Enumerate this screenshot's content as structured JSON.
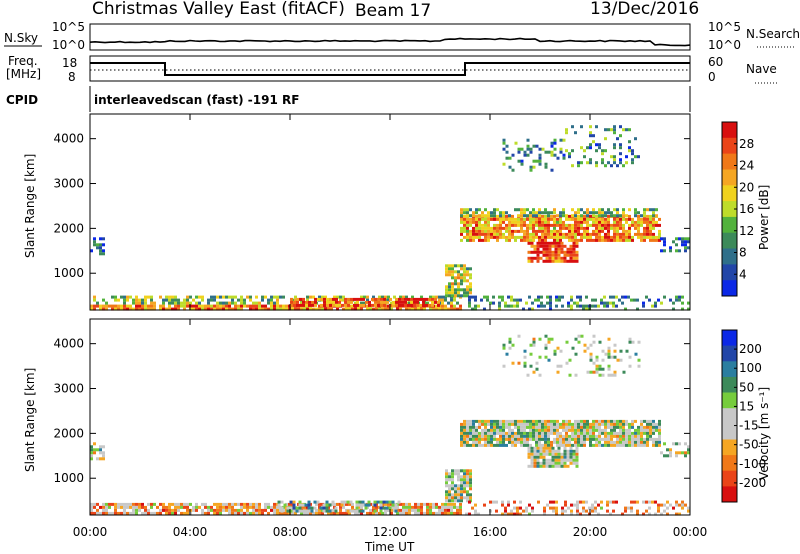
{
  "header": {
    "station": "Christmas Valley East (fitACF)",
    "beam": "Beam 17",
    "date": "13/Dec/2016"
  },
  "noise_panel": {
    "left_label": "N.Sky",
    "right_label": "N.Search",
    "ticks_left": [
      "10^5",
      "10^0"
    ],
    "ticks_right": [
      "10^5",
      "10^0"
    ]
  },
  "freq_panel": {
    "left_label_line1": "Freq.",
    "left_label_line2": "[MHz]",
    "right_label": "Nave",
    "ticks_left": [
      "18",
      "8"
    ],
    "ticks_right": [
      "60",
      "0"
    ],
    "freq_steps": [
      {
        "from_hour": 0.0,
        "to_hour": 3.0,
        "level": "high"
      },
      {
        "from_hour": 3.0,
        "to_hour": 15.0,
        "level": "low"
      },
      {
        "from_hour": 15.0,
        "to_hour": 24.0,
        "level": "high"
      }
    ]
  },
  "cpid": {
    "label": "CPID",
    "value": "interleavedscan (fast) -191 RF"
  },
  "colors": {
    "power": [
      "#0b28e6",
      "#2246a8",
      "#2f6f8a",
      "#3c8a5a",
      "#52b23c",
      "#bedc2a",
      "#f0d21e",
      "#f5a623",
      "#f07818",
      "#ea4418",
      "#d80f0f"
    ],
    "velocity": [
      "#d80f0f",
      "#ea4418",
      "#f07818",
      "#f5a623",
      "#c8c8c8",
      "#c8c8c8",
      "#76cc3c",
      "#3c8a5a",
      "#2a7ea0",
      "#2246a8",
      "#0b28e6"
    ]
  },
  "chart_data": [
    {
      "type": "heatmap",
      "name": "power",
      "xlabel": "",
      "ylabel": "Slant Range [km]",
      "xlim": [
        0,
        24
      ],
      "ylim": [
        180,
        4550
      ],
      "y_ticks": [
        "1000",
        "2000",
        "3000",
        "4000"
      ],
      "colorbar_label": "Power [dB]",
      "colorbar_ticks": [
        "28",
        "24",
        "20",
        "16",
        "12",
        "8",
        "4"
      ],
      "colorbar_range": [
        0,
        32
      ],
      "regions": [
        {
          "x0": 0.0,
          "x1": 14.8,
          "y0": 200,
          "y1": 300,
          "level": 0.75,
          "density": 0.9
        },
        {
          "x0": 0.0,
          "x1": 14.8,
          "y0": 300,
          "y1": 500,
          "level": 0.45,
          "density": 0.55
        },
        {
          "x0": 8.0,
          "x1": 14.0,
          "y0": 250,
          "y1": 450,
          "level": 0.85,
          "density": 0.8
        },
        {
          "x0": 14.2,
          "x1": 15.2,
          "y0": 500,
          "y1": 1200,
          "level": 0.5,
          "density": 0.75
        },
        {
          "x0": 14.8,
          "x1": 22.8,
          "y0": 1700,
          "y1": 2300,
          "level": 0.7,
          "density": 0.85
        },
        {
          "x0": 17.5,
          "x1": 19.5,
          "y0": 1250,
          "y1": 1700,
          "level": 0.85,
          "density": 0.8
        },
        {
          "x0": 14.8,
          "x1": 22.8,
          "y0": 2300,
          "y1": 2450,
          "level": 0.45,
          "density": 0.6
        },
        {
          "x0": 16.5,
          "x1": 19.0,
          "y0": 3300,
          "y1": 4000,
          "level": 0.3,
          "density": 0.25
        },
        {
          "x0": 19.0,
          "x1": 22.0,
          "y0": 3400,
          "y1": 4300,
          "level": 0.3,
          "density": 0.2
        },
        {
          "x0": 0.0,
          "x1": 0.6,
          "y0": 1400,
          "y1": 1800,
          "level": 0.2,
          "density": 0.5
        },
        {
          "x0": 22.8,
          "x1": 24.0,
          "y0": 1500,
          "y1": 1800,
          "level": 0.2,
          "density": 0.5
        },
        {
          "x0": 15.0,
          "x1": 24.0,
          "y0": 200,
          "y1": 500,
          "level": 0.3,
          "density": 0.35
        }
      ]
    },
    {
      "type": "heatmap",
      "name": "velocity",
      "xlabel": "Time UT",
      "ylabel": "Slant Range [km]",
      "xlim": [
        0,
        24
      ],
      "ylim": [
        180,
        4550
      ],
      "x_ticks": [
        "00:00",
        "04:00",
        "08:00",
        "12:00",
        "16:00",
        "20:00",
        "00:00"
      ],
      "y_ticks": [
        "1000",
        "2000",
        "3000",
        "4000"
      ],
      "colorbar_label": "Velocity [m s⁻¹]",
      "colorbar_ticks": [
        "200",
        "100",
        "50",
        "15",
        "-15",
        "-50",
        "-100",
        "-200"
      ],
      "colorbar_range": [
        -250,
        250
      ],
      "regions": [
        {
          "x0": 0.0,
          "x1": 14.8,
          "y0": 200,
          "y1": 450,
          "level": 0.33,
          "density": 0.8
        },
        {
          "x0": 7.5,
          "x1": 12.5,
          "y0": 250,
          "y1": 500,
          "level": 0.6,
          "density": 0.5
        },
        {
          "x0": 14.2,
          "x1": 15.2,
          "y0": 500,
          "y1": 1200,
          "level": 0.5,
          "density": 0.85
        },
        {
          "x0": 14.8,
          "x1": 22.8,
          "y0": 1700,
          "y1": 2300,
          "level": 0.5,
          "density": 0.9
        },
        {
          "x0": 17.5,
          "x1": 19.5,
          "y0": 1250,
          "y1": 1700,
          "level": 0.5,
          "density": 0.85
        },
        {
          "x0": 16.5,
          "x1": 22.0,
          "y0": 3300,
          "y1": 4200,
          "level": 0.5,
          "density": 0.2
        },
        {
          "x0": 0.0,
          "x1": 0.6,
          "y0": 1400,
          "y1": 1800,
          "level": 0.5,
          "density": 0.5
        },
        {
          "x0": 22.8,
          "x1": 24.0,
          "y0": 1500,
          "y1": 1800,
          "level": 0.5,
          "density": 0.5
        },
        {
          "x0": 15.0,
          "x1": 24.0,
          "y0": 200,
          "y1": 500,
          "level": 0.3,
          "density": 0.35
        }
      ]
    }
  ]
}
